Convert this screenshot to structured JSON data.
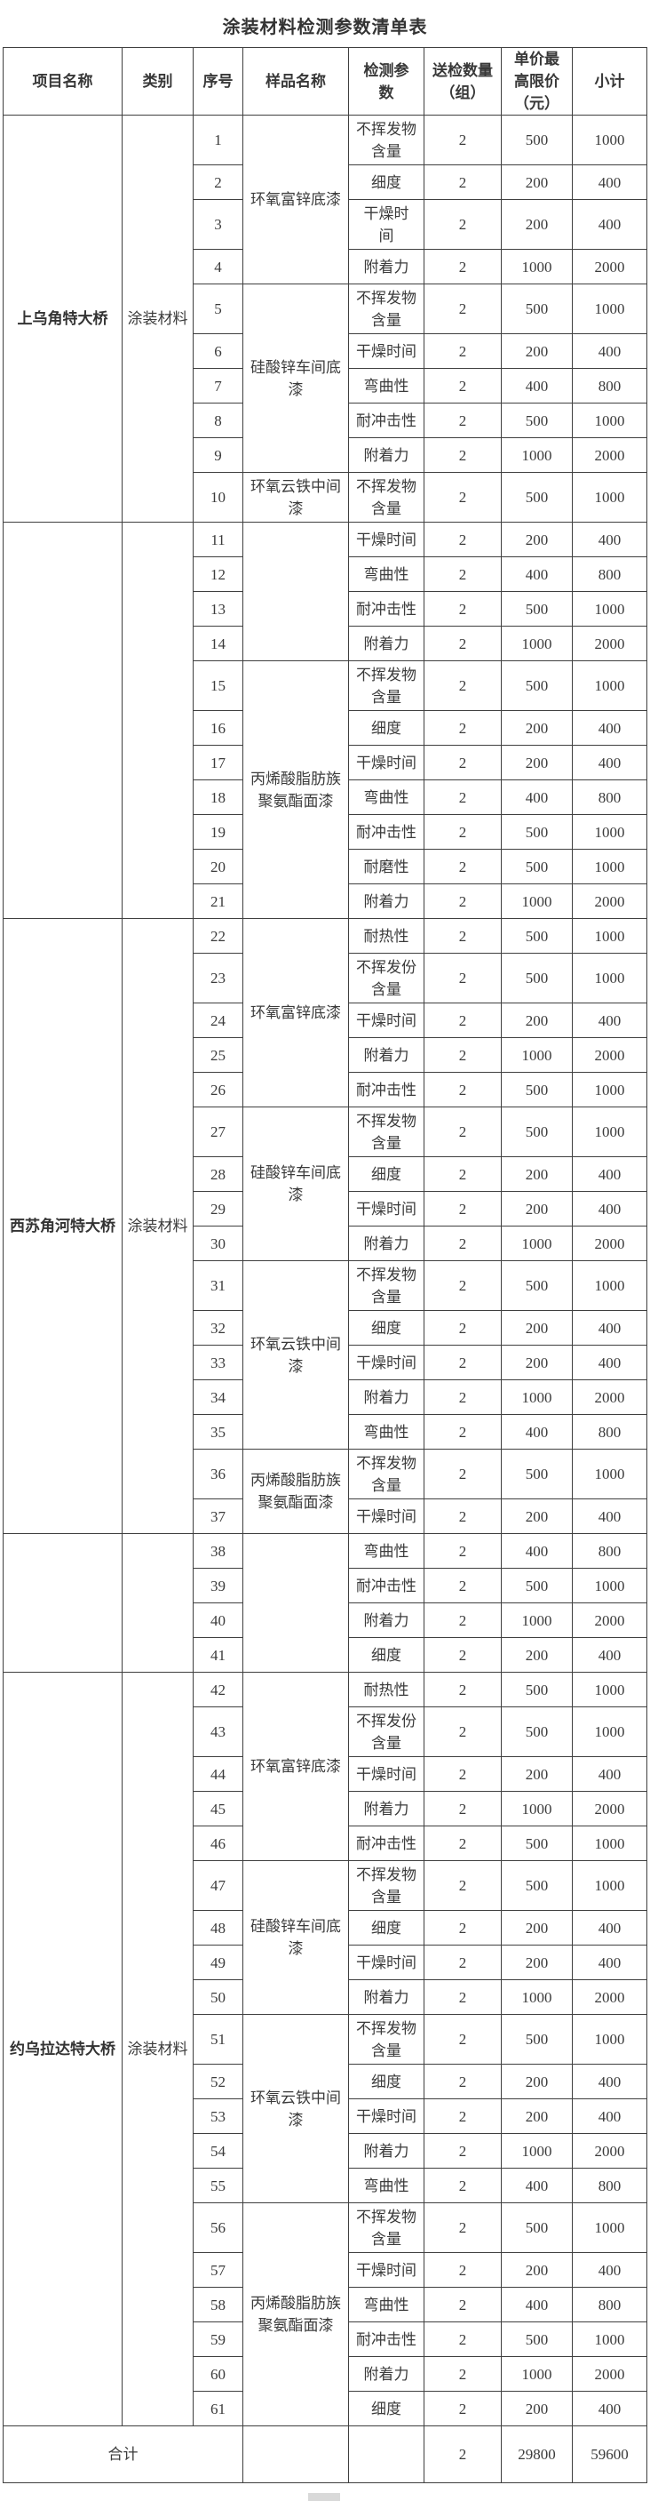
{
  "title": "涂装材料检测参数清单表",
  "table": {
    "headers": [
      "项目名称",
      "类别",
      "序号",
      "样品名称",
      "检测参\n数",
      "送检数量\n（组）",
      "单价最\n高限价\n（元）",
      "小计"
    ],
    "blocks": [
      {
        "project": "上乌角特大桥",
        "category": "涂装材料",
        "samples": [
          {
            "name": "环氧富锌底漆",
            "rows": [
              {
                "no": "1",
                "param": "不挥发物\n含量",
                "qty": "2",
                "price": "500",
                "subtotal": "1000"
              },
              {
                "no": "2",
                "param": "细度",
                "qty": "2",
                "price": "200",
                "subtotal": "400"
              },
              {
                "no": "3",
                "param": "干燥时\n间",
                "qty": "2",
                "price": "200",
                "subtotal": "400"
              },
              {
                "no": "4",
                "param": "附着力",
                "qty": "2",
                "price": "1000",
                "subtotal": "2000"
              }
            ]
          },
          {
            "name": "硅酸锌车间底\n漆",
            "rows": [
              {
                "no": "5",
                "param": "不挥发物\n含量",
                "qty": "2",
                "price": "500",
                "subtotal": "1000"
              },
              {
                "no": "6",
                "param": "干燥时间",
                "qty": "2",
                "price": "200",
                "subtotal": "400"
              },
              {
                "no": "7",
                "param": "弯曲性",
                "qty": "2",
                "price": "400",
                "subtotal": "800"
              },
              {
                "no": "8",
                "param": "耐冲击性",
                "qty": "2",
                "price": "500",
                "subtotal": "1000"
              },
              {
                "no": "9",
                "param": "附着力",
                "qty": "2",
                "price": "1000",
                "subtotal": "2000"
              }
            ]
          },
          {
            "name": "环氧云铁中间\n漆",
            "rows": [
              {
                "no": "10",
                "param": "不挥发物\n含量",
                "qty": "2",
                "price": "500",
                "subtotal": "1000"
              }
            ]
          }
        ]
      },
      {
        "project": "",
        "category": "",
        "samples": [
          {
            "name": "",
            "rows": [
              {
                "no": "11",
                "param": "干燥时间",
                "qty": "2",
                "price": "200",
                "subtotal": "400"
              },
              {
                "no": "12",
                "param": "弯曲性",
                "qty": "2",
                "price": "400",
                "subtotal": "800"
              },
              {
                "no": "13",
                "param": "耐冲击性",
                "qty": "2",
                "price": "500",
                "subtotal": "1000"
              },
              {
                "no": "14",
                "param": "附着力",
                "qty": "2",
                "price": "1000",
                "subtotal": "2000"
              }
            ]
          },
          {
            "name": "丙烯酸脂肪族\n聚氨酯面漆",
            "rows": [
              {
                "no": "15",
                "param": "不挥发物\n含量",
                "qty": "2",
                "price": "500",
                "subtotal": "1000"
              },
              {
                "no": "16",
                "param": "细度",
                "qty": "2",
                "price": "200",
                "subtotal": "400"
              },
              {
                "no": "17",
                "param": "干燥时间",
                "qty": "2",
                "price": "200",
                "subtotal": "400"
              },
              {
                "no": "18",
                "param": "弯曲性",
                "qty": "2",
                "price": "400",
                "subtotal": "800"
              },
              {
                "no": "19",
                "param": "耐冲击性",
                "qty": "2",
                "price": "500",
                "subtotal": "1000"
              },
              {
                "no": "20",
                "param": "耐磨性",
                "qty": "2",
                "price": "500",
                "subtotal": "1000"
              },
              {
                "no": "21",
                "param": "附着力",
                "qty": "2",
                "price": "1000",
                "subtotal": "2000"
              }
            ]
          }
        ]
      },
      {
        "project": "西苏角河特大桥",
        "category": "涂装材料",
        "samples": [
          {
            "name": "环氧富锌底漆",
            "rows": [
              {
                "no": "22",
                "param": "耐热性",
                "qty": "2",
                "price": "500",
                "subtotal": "1000"
              },
              {
                "no": "23",
                "param": "不挥发份\n含量",
                "qty": "2",
                "price": "500",
                "subtotal": "1000"
              },
              {
                "no": "24",
                "param": "干燥时间",
                "qty": "2",
                "price": "200",
                "subtotal": "400"
              },
              {
                "no": "25",
                "param": "附着力",
                "qty": "2",
                "price": "1000",
                "subtotal": "2000"
              },
              {
                "no": "26",
                "param": "耐冲击性",
                "qty": "2",
                "price": "500",
                "subtotal": "1000"
              }
            ]
          },
          {
            "name": "硅酸锌车间底\n漆",
            "rows": [
              {
                "no": "27",
                "param": "不挥发物\n含量",
                "qty": "2",
                "price": "500",
                "subtotal": "1000"
              },
              {
                "no": "28",
                "param": "细度",
                "qty": "2",
                "price": "200",
                "subtotal": "400"
              },
              {
                "no": "29",
                "param": "干燥时间",
                "qty": "2",
                "price": "200",
                "subtotal": "400"
              },
              {
                "no": "30",
                "param": "附着力",
                "qty": "2",
                "price": "1000",
                "subtotal": "2000"
              }
            ]
          },
          {
            "name": "环氧云铁中间\n漆",
            "rows": [
              {
                "no": "31",
                "param": "不挥发物\n含量",
                "qty": "2",
                "price": "500",
                "subtotal": "1000"
              },
              {
                "no": "32",
                "param": "细度",
                "qty": "2",
                "price": "200",
                "subtotal": "400"
              },
              {
                "no": "33",
                "param": "干燥时间",
                "qty": "2",
                "price": "200",
                "subtotal": "400"
              },
              {
                "no": "34",
                "param": "附着力",
                "qty": "2",
                "price": "1000",
                "subtotal": "2000"
              },
              {
                "no": "35",
                "param": "弯曲性",
                "qty": "2",
                "price": "400",
                "subtotal": "800"
              }
            ]
          },
          {
            "name": "丙烯酸脂肪族\n聚氨酯面漆",
            "rows": [
              {
                "no": "36",
                "param": "不挥发物\n含量",
                "qty": "2",
                "price": "500",
                "subtotal": "1000"
              },
              {
                "no": "37",
                "param": "干燥时间",
                "qty": "2",
                "price": "200",
                "subtotal": "400"
              }
            ]
          }
        ]
      },
      {
        "project": "",
        "category": "",
        "samples": [
          {
            "name": "",
            "rows": [
              {
                "no": "38",
                "param": "弯曲性",
                "qty": "2",
                "price": "400",
                "subtotal": "800"
              },
              {
                "no": "39",
                "param": "耐冲击性",
                "qty": "2",
                "price": "500",
                "subtotal": "1000"
              },
              {
                "no": "40",
                "param": "附着力",
                "qty": "2",
                "price": "1000",
                "subtotal": "2000"
              },
              {
                "no": "41",
                "param": "细度",
                "qty": "2",
                "price": "200",
                "subtotal": "400"
              }
            ]
          }
        ]
      },
      {
        "project": "约乌拉达特大桥",
        "category": "涂装材料",
        "samples": [
          {
            "name": "环氧富锌底漆",
            "rows": [
              {
                "no": "42",
                "param": "耐热性",
                "qty": "2",
                "price": "500",
                "subtotal": "1000"
              },
              {
                "no": "43",
                "param": "不挥发份\n含量",
                "qty": "2",
                "price": "500",
                "subtotal": "1000"
              },
              {
                "no": "44",
                "param": "干燥时间",
                "qty": "2",
                "price": "200",
                "subtotal": "400"
              },
              {
                "no": "45",
                "param": "附着力",
                "qty": "2",
                "price": "1000",
                "subtotal": "2000"
              },
              {
                "no": "46",
                "param": "耐冲击性",
                "qty": "2",
                "price": "500",
                "subtotal": "1000"
              }
            ]
          },
          {
            "name": "硅酸锌车间底\n漆",
            "rows": [
              {
                "no": "47",
                "param": "不挥发物\n含量",
                "qty": "2",
                "price": "500",
                "subtotal": "1000"
              },
              {
                "no": "48",
                "param": "细度",
                "qty": "2",
                "price": "200",
                "subtotal": "400"
              },
              {
                "no": "49",
                "param": "干燥时间",
                "qty": "2",
                "price": "200",
                "subtotal": "400"
              },
              {
                "no": "50",
                "param": "附着力",
                "qty": "2",
                "price": "1000",
                "subtotal": "2000"
              }
            ]
          },
          {
            "name": "环氧云铁中间\n漆",
            "rows": [
              {
                "no": "51",
                "param": "不挥发物\n含量",
                "qty": "2",
                "price": "500",
                "subtotal": "1000"
              },
              {
                "no": "52",
                "param": "细度",
                "qty": "2",
                "price": "200",
                "subtotal": "400"
              },
              {
                "no": "53",
                "param": "干燥时间",
                "qty": "2",
                "price": "200",
                "subtotal": "400"
              },
              {
                "no": "54",
                "param": "附着力",
                "qty": "2",
                "price": "1000",
                "subtotal": "2000"
              },
              {
                "no": "55",
                "param": "弯曲性",
                "qty": "2",
                "price": "400",
                "subtotal": "800"
              }
            ]
          },
          {
            "name": "丙烯酸脂肪族\n聚氨酯面漆",
            "rows": [
              {
                "no": "56",
                "param": "不挥发物\n含量",
                "qty": "2",
                "price": "500",
                "subtotal": "1000"
              },
              {
                "no": "57",
                "param": "干燥时间",
                "qty": "2",
                "price": "200",
                "subtotal": "400"
              },
              {
                "no": "58",
                "param": "弯曲性",
                "qty": "2",
                "price": "400",
                "subtotal": "800"
              },
              {
                "no": "59",
                "param": "耐冲击性",
                "qty": "2",
                "price": "500",
                "subtotal": "1000"
              },
              {
                "no": "60",
                "param": "附着力",
                "qty": "2",
                "price": "1000",
                "subtotal": "2000"
              },
              {
                "no": "61",
                "param": "细度",
                "qty": "2",
                "price": "200",
                "subtotal": "400"
              }
            ]
          }
        ]
      }
    ],
    "total_row": {
      "label": "合计",
      "sample": "",
      "param": "",
      "qty": "2",
      "price": "29800",
      "subtotal": "59600"
    }
  },
  "colors": {
    "text": "#3b3b3b",
    "border": "#3f3f3f",
    "background": "#ffffff"
  }
}
